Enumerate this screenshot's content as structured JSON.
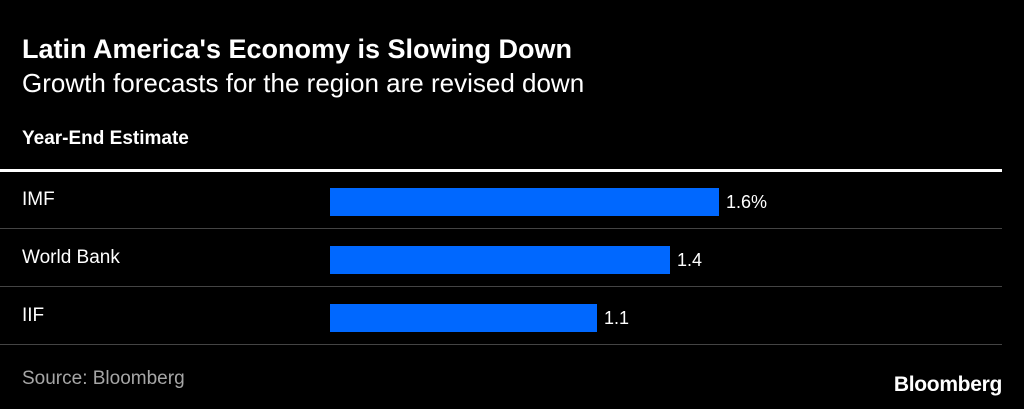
{
  "chart_data": {
    "type": "bar",
    "orientation": "horizontal",
    "title": "Latin America's Economy is Slowing Down",
    "subtitle": "Growth forecasts for the region are revised down",
    "column_header": "Year-End Estimate",
    "categories": [
      "IMF",
      "World Bank",
      "IIF"
    ],
    "values": [
      1.6,
      1.4,
      1.1
    ],
    "value_labels": [
      "1.6%",
      "1.4",
      "1.1"
    ],
    "xlim": [
      0,
      1.6
    ],
    "unit": "%",
    "grid": false,
    "bar_color": "#0068ff",
    "source": "Source: Bloomberg"
  },
  "branding": {
    "logo_text": "Bloomberg"
  }
}
